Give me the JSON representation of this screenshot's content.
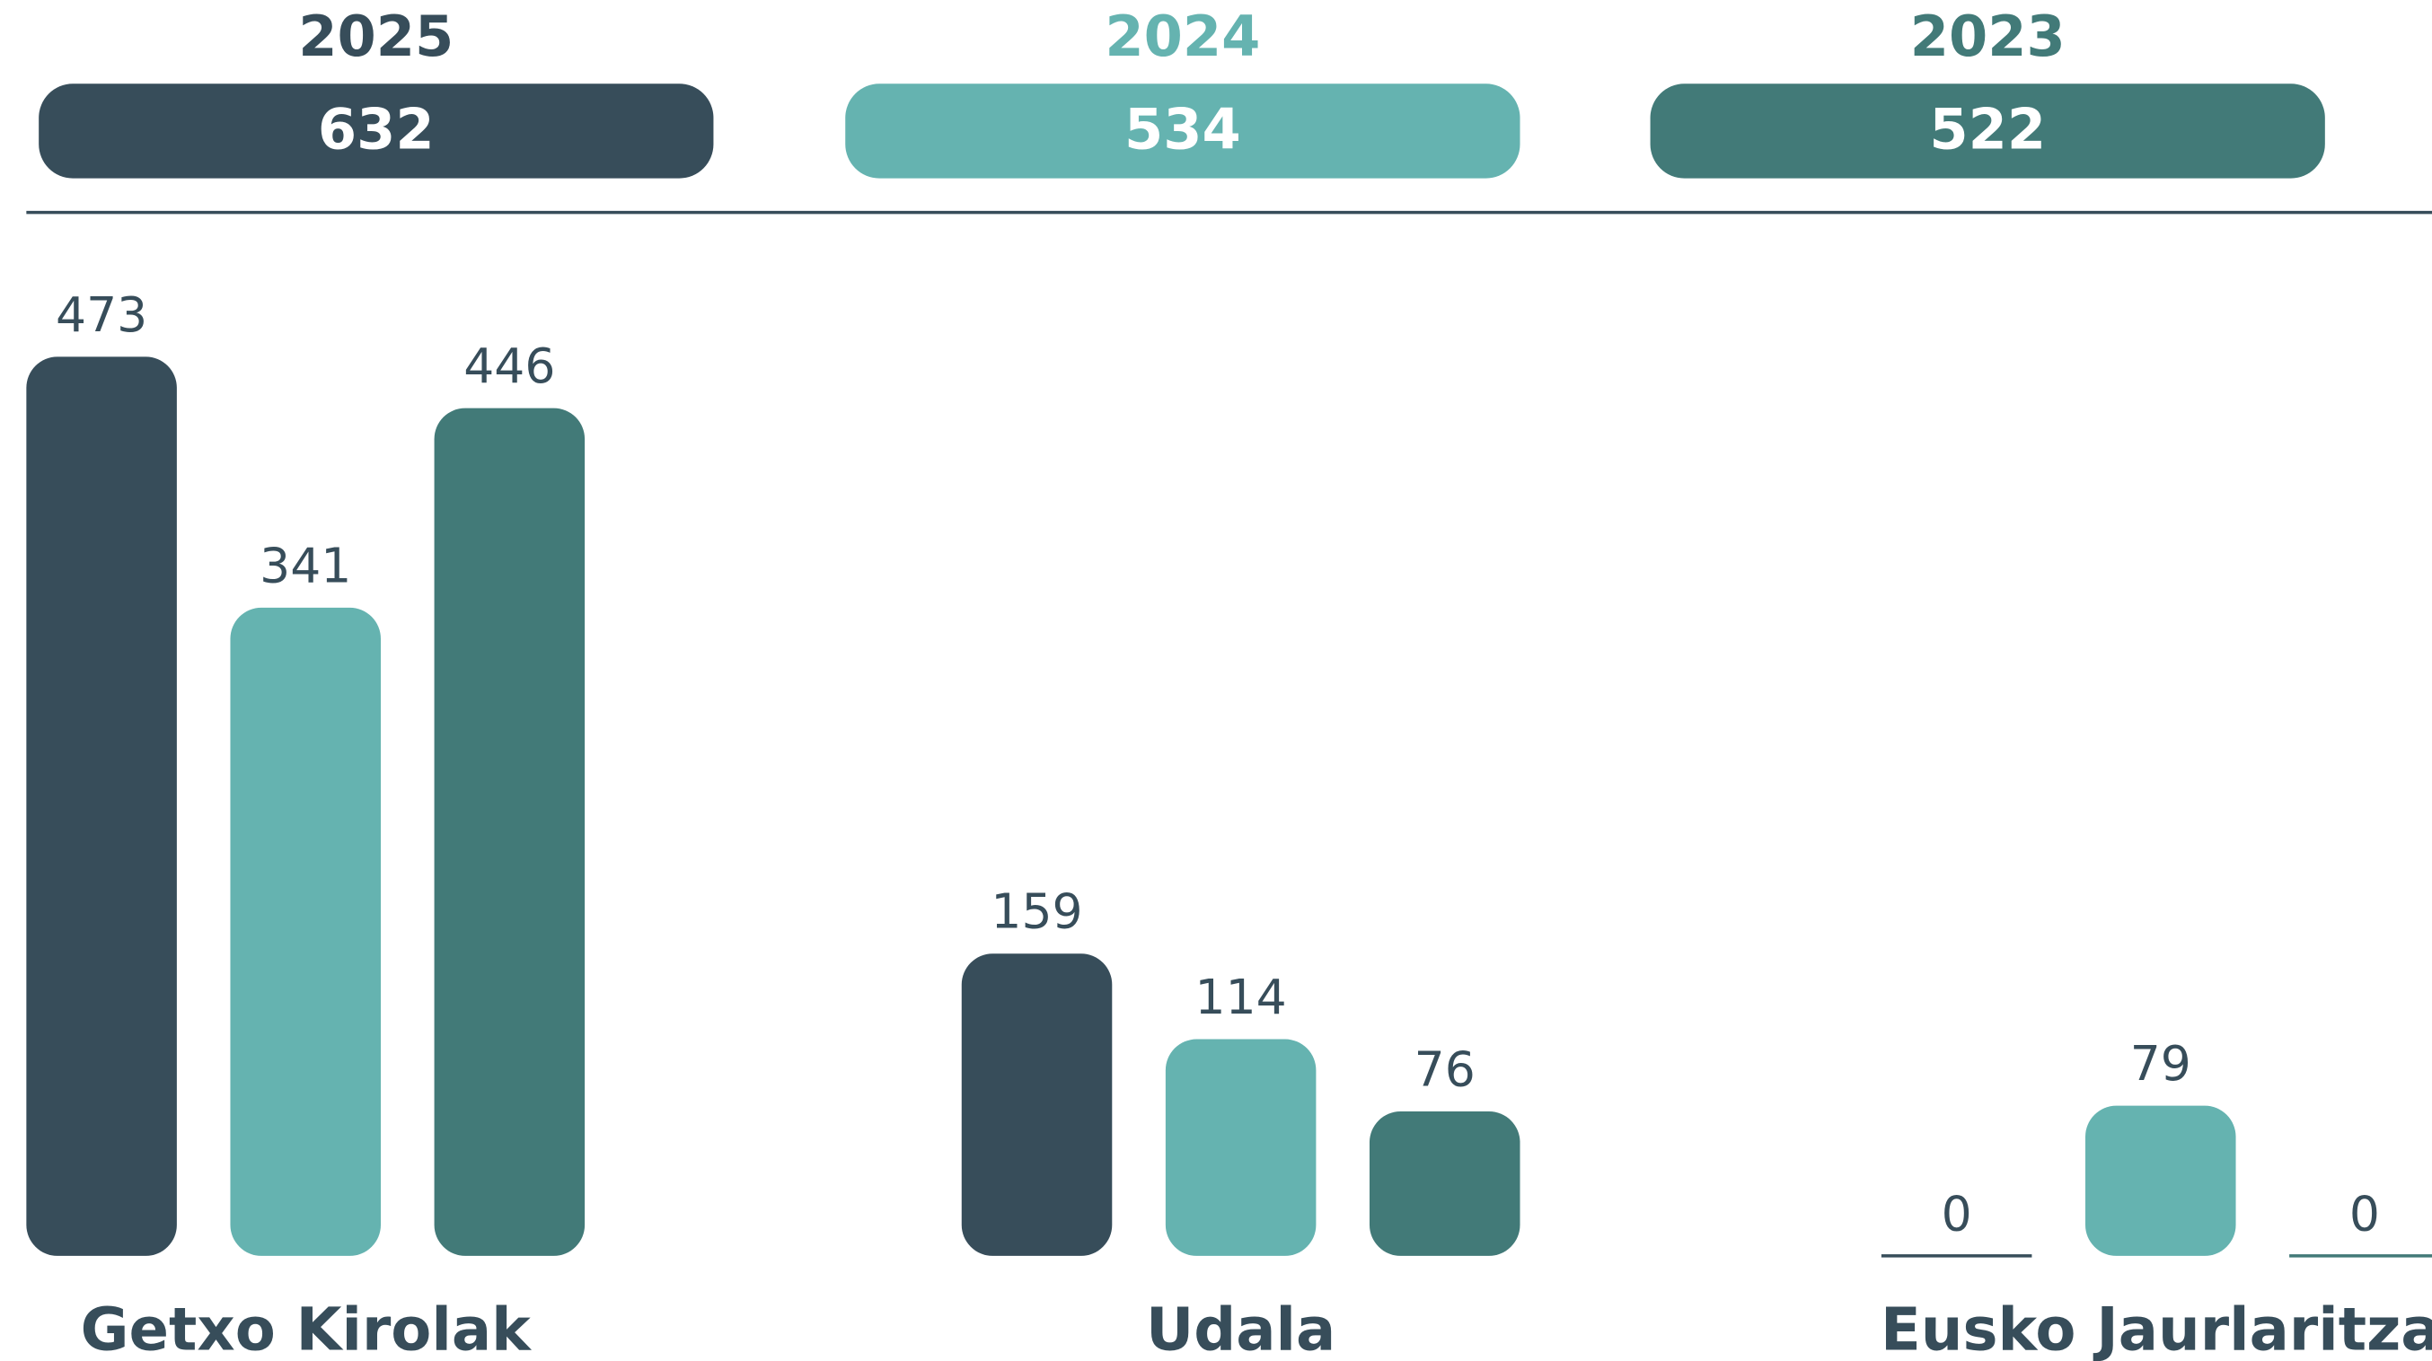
{
  "chart_data": {
    "type": "bar",
    "categories": [
      "Getxo Kirolak",
      "Udala",
      "Eusko Jaurlaritza"
    ],
    "series": [
      {
        "name": "2025",
        "color": "#374d5a",
        "total": 632,
        "values": [
          473,
          159,
          0
        ]
      },
      {
        "name": "2024",
        "color": "#65b3b0",
        "total": 534,
        "values": [
          341,
          114,
          79
        ]
      },
      {
        "name": "2023",
        "color": "#427a78",
        "total": 522,
        "values": [
          446,
          76,
          0
        ]
      }
    ]
  }
}
